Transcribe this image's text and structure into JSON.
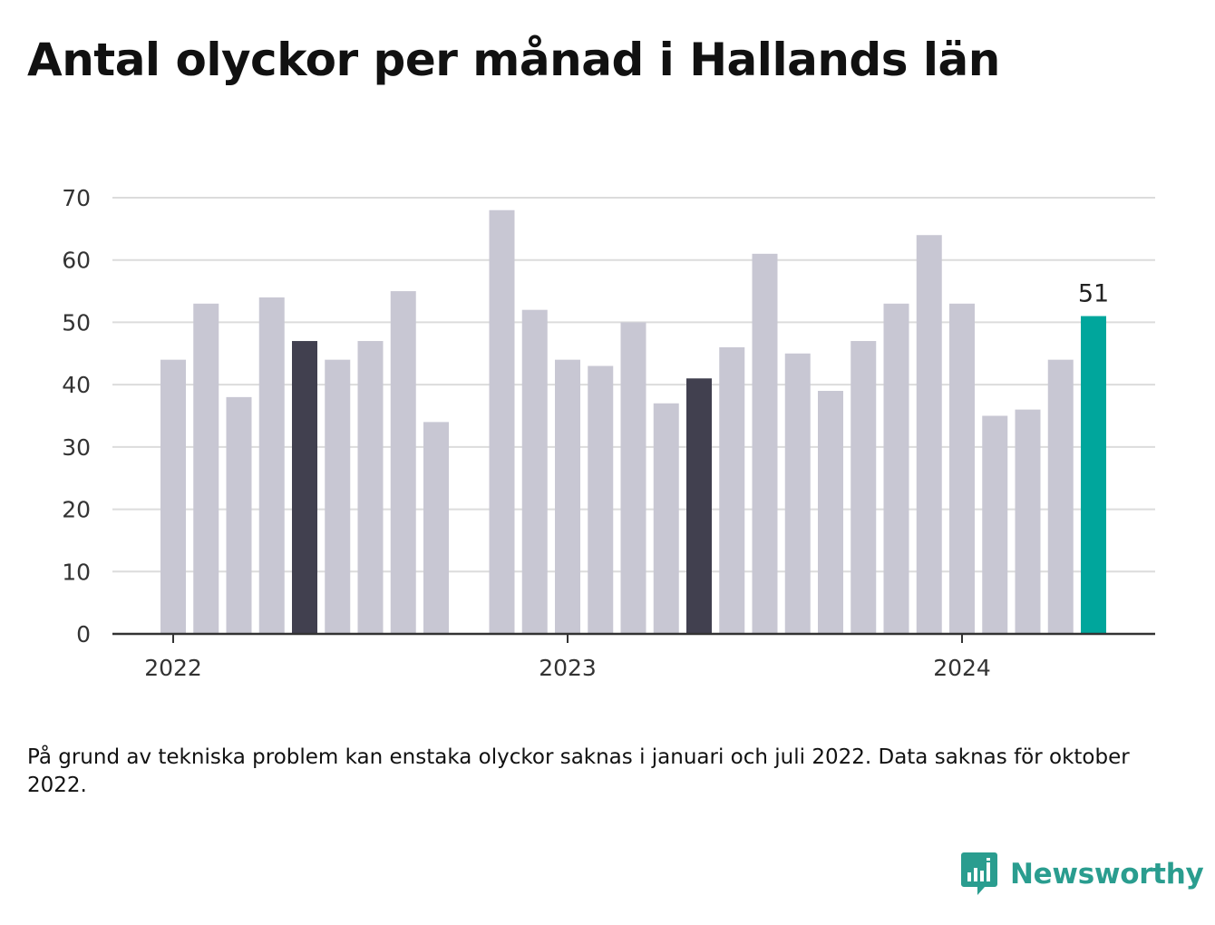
{
  "chart_data": {
    "type": "bar",
    "title": "Antal olyckor per månad i Hallands län",
    "ylim": [
      0,
      70
    ],
    "yticks": [
      0,
      10,
      20,
      30,
      40,
      50,
      60,
      70
    ],
    "xtick_labels": [
      {
        "label": "2022",
        "x": "2022-01"
      },
      {
        "label": "2023",
        "x": "2023-01"
      },
      {
        "label": "2024",
        "x": "2024-01"
      }
    ],
    "grid": true,
    "months": [
      "2022-01",
      "2022-02",
      "2022-03",
      "2022-04",
      "2022-05",
      "2022-06",
      "2022-07",
      "2022-08",
      "2022-09",
      "2022-10",
      "2022-11",
      "2022-12",
      "2023-01",
      "2023-02",
      "2023-03",
      "2023-04",
      "2023-05",
      "2023-06",
      "2023-07",
      "2023-08",
      "2023-09",
      "2023-10",
      "2023-11",
      "2023-12",
      "2024-01",
      "2024-02",
      "2024-03",
      "2024-04",
      "2024-05"
    ],
    "values": [
      44,
      53,
      38,
      54,
      47,
      44,
      47,
      55,
      34,
      null,
      68,
      52,
      44,
      43,
      50,
      37,
      41,
      46,
      61,
      45,
      39,
      47,
      53,
      64,
      53,
      35,
      36,
      44,
      51
    ],
    "highlight_dark": [
      "2022-05",
      "2023-05"
    ],
    "highlight_accent": [
      "2024-05"
    ],
    "data_label": {
      "month": "2024-05",
      "text": "51"
    },
    "colors": {
      "default": "#c8c7d3",
      "dark": "#41404f",
      "accent": "#00a69c",
      "grid": "#dcdcdc",
      "axis": "#333333"
    }
  },
  "footnote": "På grund av tekniska problem kan enstaka olyckor saknas i januari och juli 2022. Data saknas för oktober 2022.",
  "brand": {
    "name": "Newsworthy",
    "color": "#2a9d8f",
    "icon": "newsworthy-logo-icon"
  }
}
